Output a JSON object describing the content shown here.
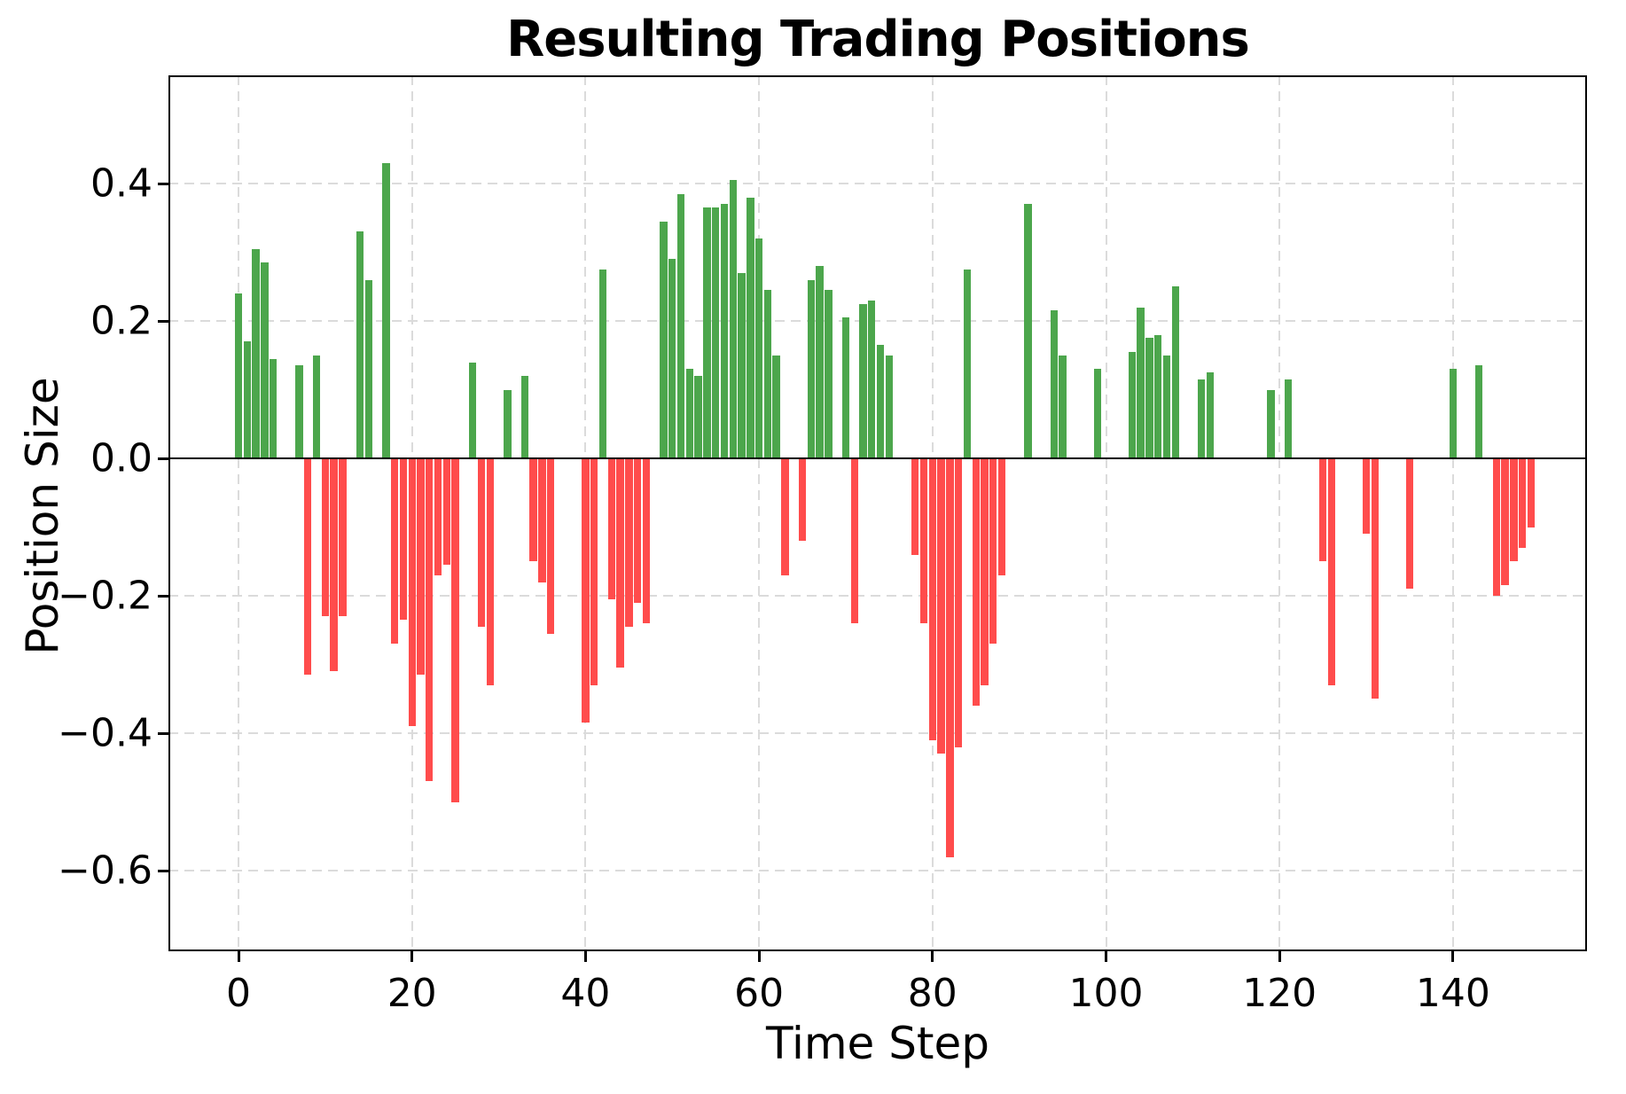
{
  "title": "Resulting Trading Positions",
  "chart_data": {
    "type": "bar",
    "title": "Resulting Trading Positions",
    "xlabel": "Time Step",
    "ylabel": "Position Size",
    "x_tick_values": [
      0,
      20,
      40,
      60,
      80,
      100,
      120,
      140
    ],
    "x_tick_labels": [
      "0",
      "20",
      "40",
      "60",
      "80",
      "100",
      "120",
      "140"
    ],
    "y_tick_values": [
      0.4,
      0.2,
      0.0,
      -0.2,
      -0.4,
      -0.6
    ],
    "y_tick_labels": [
      "0.4",
      "0.2",
      "0.0",
      "−0.2",
      "−0.4",
      "−0.6"
    ],
    "xlim": [
      -8.1,
      155.5
    ],
    "ylim": [
      -0.717,
      0.557
    ],
    "grid": true,
    "grid_style": "dashed",
    "legend_position": "none",
    "zero_line": true,
    "colors": {
      "positive": "#4CA64C",
      "negative": "#FF4C4C",
      "grid": "#DBDBDB",
      "axis": "#000000",
      "background": "#FFFFFF"
    },
    "x_start": 0,
    "x_step": 1,
    "values": [
      0.24,
      0.17,
      0.305,
      0.285,
      0.145,
      0,
      0,
      0.135,
      -0.315,
      0.15,
      -0.23,
      -0.31,
      -0.23,
      0,
      0.33,
      0.26,
      0,
      0.43,
      -0.27,
      -0.235,
      -0.39,
      -0.315,
      -0.47,
      -0.17,
      -0.155,
      -0.5,
      0,
      0.14,
      -0.245,
      -0.33,
      0,
      0.1,
      0,
      0.12,
      -0.15,
      -0.18,
      -0.255,
      0,
      0,
      0,
      -0.385,
      -0.33,
      0.275,
      -0.205,
      -0.305,
      -0.245,
      -0.21,
      -0.24,
      0,
      0.345,
      0.29,
      0.385,
      0.13,
      0.12,
      0.365,
      0.365,
      0.37,
      0.405,
      0.27,
      0.38,
      0.32,
      0.245,
      0.15,
      -0.17,
      0,
      -0.12,
      0.26,
      0.28,
      0.245,
      0,
      0.205,
      -0.24,
      0.225,
      0.23,
      0.165,
      0.15,
      0,
      0,
      -0.14,
      -0.24,
      -0.41,
      -0.43,
      -0.58,
      -0.42,
      0.275,
      -0.36,
      -0.33,
      -0.27,
      -0.17,
      0,
      0,
      0.37,
      0,
      0,
      0.215,
      0.15,
      0,
      0,
      0,
      0.13,
      0,
      0,
      0,
      0.155,
      0.22,
      0.175,
      0.18,
      0.15,
      0.25,
      0,
      0,
      0.115,
      0.125,
      0,
      0,
      0,
      0,
      0,
      0,
      0.1,
      0,
      0.115,
      0,
      0,
      0,
      -0.15,
      -0.33,
      0,
      0,
      0,
      -0.11,
      -0.35,
      0,
      0,
      0,
      -0.19,
      0,
      0,
      0,
      0,
      0.13,
      0,
      0,
      0.135,
      0,
      -0.2,
      -0.185,
      -0.15,
      -0.13,
      -0.1,
      0,
      0
    ]
  }
}
